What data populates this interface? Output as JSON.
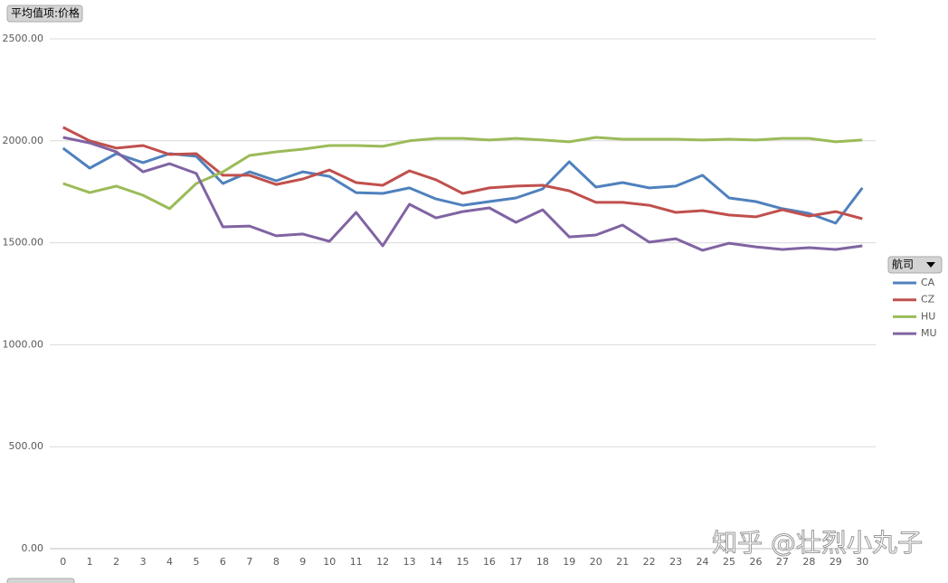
{
  "chart_data": {
    "type": "line",
    "value_field_button": "平均值项:价格",
    "legend_title": "航司",
    "watermark": "知乎 @壮烈小丸子",
    "categories": [
      "0",
      "1",
      "2",
      "3",
      "4",
      "5",
      "6",
      "7",
      "8",
      "9",
      "10",
      "11",
      "12",
      "13",
      "14",
      "15",
      "16",
      "17",
      "18",
      "19",
      "20",
      "21",
      "22",
      "23",
      "24",
      "25",
      "26",
      "27",
      "28",
      "29",
      "30"
    ],
    "ylim": [
      0,
      2500
    ],
    "yticks": [
      {
        "value": 0,
        "label": "0.00"
      },
      {
        "value": 500,
        "label": "500.00"
      },
      {
        "value": 1000,
        "label": "1000.00"
      },
      {
        "value": 1500,
        "label": "1500.00"
      },
      {
        "value": 2000,
        "label": "2000.00"
      },
      {
        "value": 2500,
        "label": "2500.00"
      }
    ],
    "grid": true,
    "series": [
      {
        "name": "CA",
        "color": "#4f81bd",
        "values": [
          1964,
          1866,
          1937,
          1893,
          1937,
          1924,
          1791,
          1848,
          1804,
          1848,
          1826,
          1746,
          1742,
          1769,
          1715,
          1684,
          1702,
          1720,
          1764,
          1897,
          1773,
          1795,
          1769,
          1778,
          1831,
          1720,
          1702,
          1667,
          1644,
          1596,
          1769
        ]
      },
      {
        "name": "CZ",
        "color": "#c0504d",
        "values": [
          2066,
          2000,
          1964,
          1977,
          1933,
          1937,
          1831,
          1831,
          1786,
          1813,
          1857,
          1795,
          1782,
          1853,
          1809,
          1742,
          1769,
          1778,
          1782,
          1755,
          1698,
          1698,
          1684,
          1649,
          1658,
          1636,
          1627,
          1662,
          1631,
          1653,
          1618
        ]
      },
      {
        "name": "HU",
        "color": "#9bbb59",
        "values": [
          1791,
          1746,
          1778,
          1733,
          1667,
          1791,
          1848,
          1928,
          1946,
          1959,
          1977,
          1977,
          1973,
          2000,
          2012,
          2012,
          2004,
          2012,
          2004,
          1995,
          2017,
          2008,
          2008,
          2008,
          2004,
          2008,
          2004,
          2012,
          2012,
          1995,
          2004
        ]
      },
      {
        "name": "MU",
        "color": "#8064a2",
        "values": [
          2017,
          1990,
          1946,
          1848,
          1888,
          1840,
          1578,
          1582,
          1534,
          1543,
          1507,
          1649,
          1485,
          1689,
          1622,
          1653,
          1671,
          1600,
          1662,
          1529,
          1538,
          1587,
          1503,
          1520,
          1463,
          1498,
          1480,
          1467,
          1476,
          1467,
          1485
        ]
      }
    ]
  }
}
